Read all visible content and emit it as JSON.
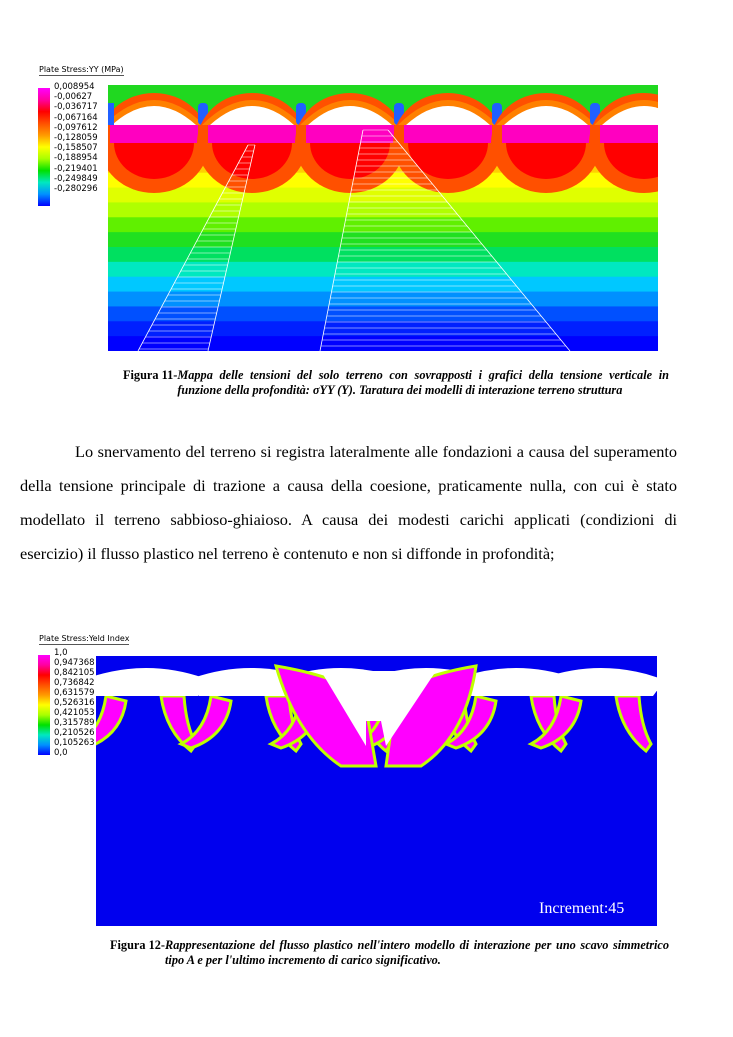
{
  "figure11": {
    "legend_title": "Plate Stress:YY  (MPa)",
    "legend_values": [
      "0,008954",
      "-0,00627",
      "-0,036717",
      "-0,067164",
      "-0,097612",
      "-0,128059",
      "-0,158507",
      "-0,188954",
      "-0,219401",
      "-0,249849",
      "-0,280296"
    ],
    "legend_colors": [
      "#ff00ff",
      "#ff00a0",
      "#ff0000",
      "#ff5000",
      "#ff9a00",
      "#ffff00",
      "#a8ff00",
      "#00e000",
      "#00e8c0",
      "#0090ff",
      "#0000ff"
    ],
    "caption_label": "Figura 11-",
    "caption_text": "Mappa delle tensioni del solo terreno con sovrapposti i grafici della tensione verticale in funzione della profondità: σYY (Y). Taratura dei modelli di interazione terreno struttura"
  },
  "paragraph": "Lo snervamento del terreno si registra lateralmente alle fondazioni a causa del superamento della tensione principale di trazione a causa della coesione, praticamente nulla, con cui è stato modellato il terreno sabbioso-ghiaioso. A causa dei modesti carichi applicati (condizioni di esercizio) il flusso plastico nel terreno è contenuto e non si diffonde in profondità;",
  "figure12": {
    "legend_title": "Plate Stress:Yeld Index",
    "legend_values": [
      "1,0",
      "0,947368",
      "0,842105",
      "0,736842",
      "0,631579",
      "0,526316",
      "0,421053",
      "0,315789",
      "0,210526",
      "0,105263",
      "0,0"
    ],
    "increment_label": "Increment:45",
    "caption_label": "Figura 12-",
    "caption_text": "Rappresentazione del flusso plastico nell'intero modello di interazione per uno scavo simmetrico tipo A e per l'ultimo incremento di carico significativo."
  }
}
